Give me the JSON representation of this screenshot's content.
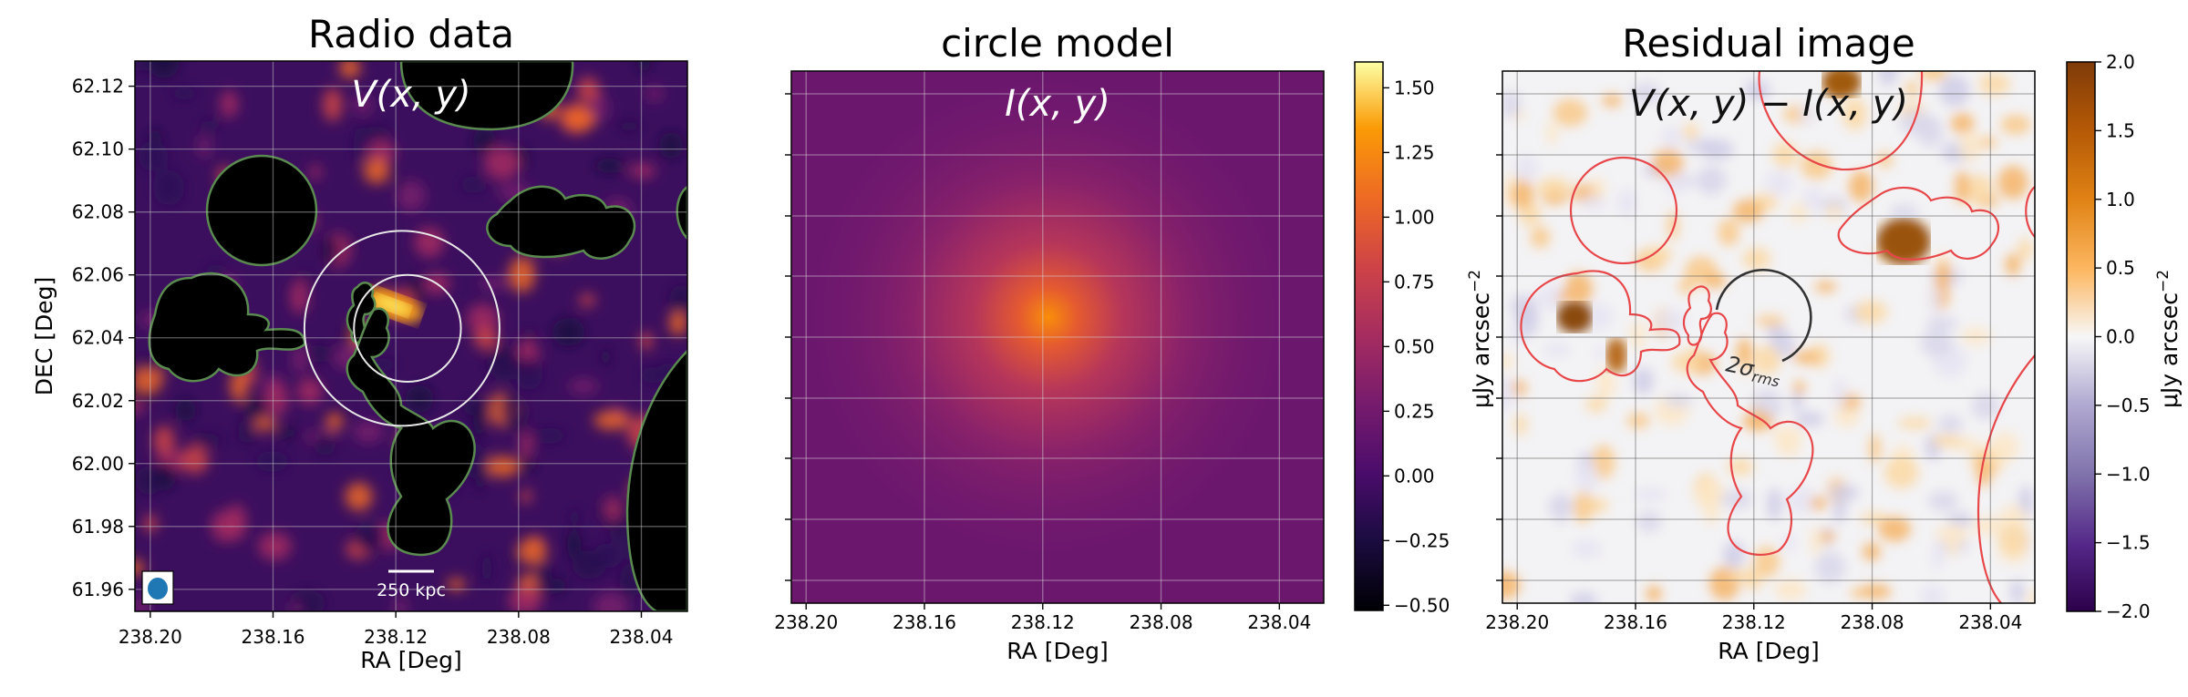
{
  "chart_data": [
    {
      "type": "heatmap",
      "title": "Radio data",
      "annotation": "V(x, y)",
      "xlabel": "RA [Deg]",
      "ylabel": "DEC [Deg]",
      "xlim": [
        238.205,
        238.025
      ],
      "ylim": [
        61.953,
        62.128
      ],
      "xticks": [
        "238.20",
        "238.16",
        "238.12",
        "238.08",
        "238.04"
      ],
      "xtick_values": [
        238.2,
        238.16,
        238.12,
        238.08,
        238.04
      ],
      "yticks": [
        "62.12",
        "62.10",
        "62.08",
        "62.06",
        "62.04",
        "62.02",
        "62.00",
        "61.98",
        "61.96"
      ],
      "ytick_values": [
        62.12,
        62.1,
        62.08,
        62.06,
        62.04,
        62.02,
        62.0,
        61.98,
        61.96
      ],
      "scalebar_label": "250 kpc",
      "grid": true,
      "colormap": "inferno",
      "source_center": [
        238.118,
        62.043
      ],
      "circle_radii_deg": [
        0.031,
        0.017
      ],
      "colors": {
        "mask_fill": "#000000",
        "mask_edge": "#5a8a50",
        "grid": "#c8c8c8",
        "beam": "#1f77b4"
      }
    },
    {
      "type": "heatmap",
      "title": "circle model",
      "annotation": "I(x, y)",
      "xlabel": "RA [Deg]",
      "xlim": [
        238.205,
        238.025
      ],
      "xticks": [
        "238.20",
        "238.16",
        "238.12",
        "238.08",
        "238.04"
      ],
      "xtick_values": [
        238.2,
        238.16,
        238.12,
        238.08,
        238.04
      ],
      "grid": true,
      "colormap": "inferno",
      "peak_center": [
        238.12,
        62.045
      ],
      "colorbar": {
        "ticks": [
          "1.50",
          "1.25",
          "1.00",
          "0.75",
          "0.50",
          "0.25",
          "0.00",
          "−0.25",
          "−0.50"
        ],
        "tick_values": [
          1.5,
          1.25,
          1.0,
          0.75,
          0.5,
          0.25,
          0.0,
          -0.25,
          -0.5
        ],
        "range": [
          -0.52,
          1.6
        ]
      }
    },
    {
      "type": "heatmap",
      "title": "Residual image",
      "annotation": "V(x, y) − I(x, y)",
      "xlabel": "RA [Deg]",
      "xlim": [
        238.205,
        238.025
      ],
      "xticks": [
        "238.20",
        "238.16",
        "238.12",
        "238.08",
        "238.04"
      ],
      "xtick_values": [
        238.2,
        238.16,
        238.12,
        238.08,
        238.04
      ],
      "grid": true,
      "colormap": "PuOr_r",
      "circle_label": "2σ",
      "circle_label_sub": "rms",
      "colorbar": {
        "label": "μJy arcsec",
        "label_exp": "−2",
        "ticks": [
          "2.0",
          "1.5",
          "1.0",
          "0.5",
          "0.0",
          "−0.5",
          "−1.0",
          "−1.5",
          "−2.0"
        ],
        "tick_values": [
          2.0,
          1.5,
          1.0,
          0.5,
          0.0,
          -0.5,
          -1.0,
          -1.5,
          -2.0
        ],
        "range": [
          -2.0,
          2.0
        ]
      },
      "side_label": "μJy arcsec",
      "side_label_exp": "−2",
      "colors": {
        "contour": "#e8474a",
        "circle": "#333333",
        "grid": "#666666"
      }
    }
  ]
}
